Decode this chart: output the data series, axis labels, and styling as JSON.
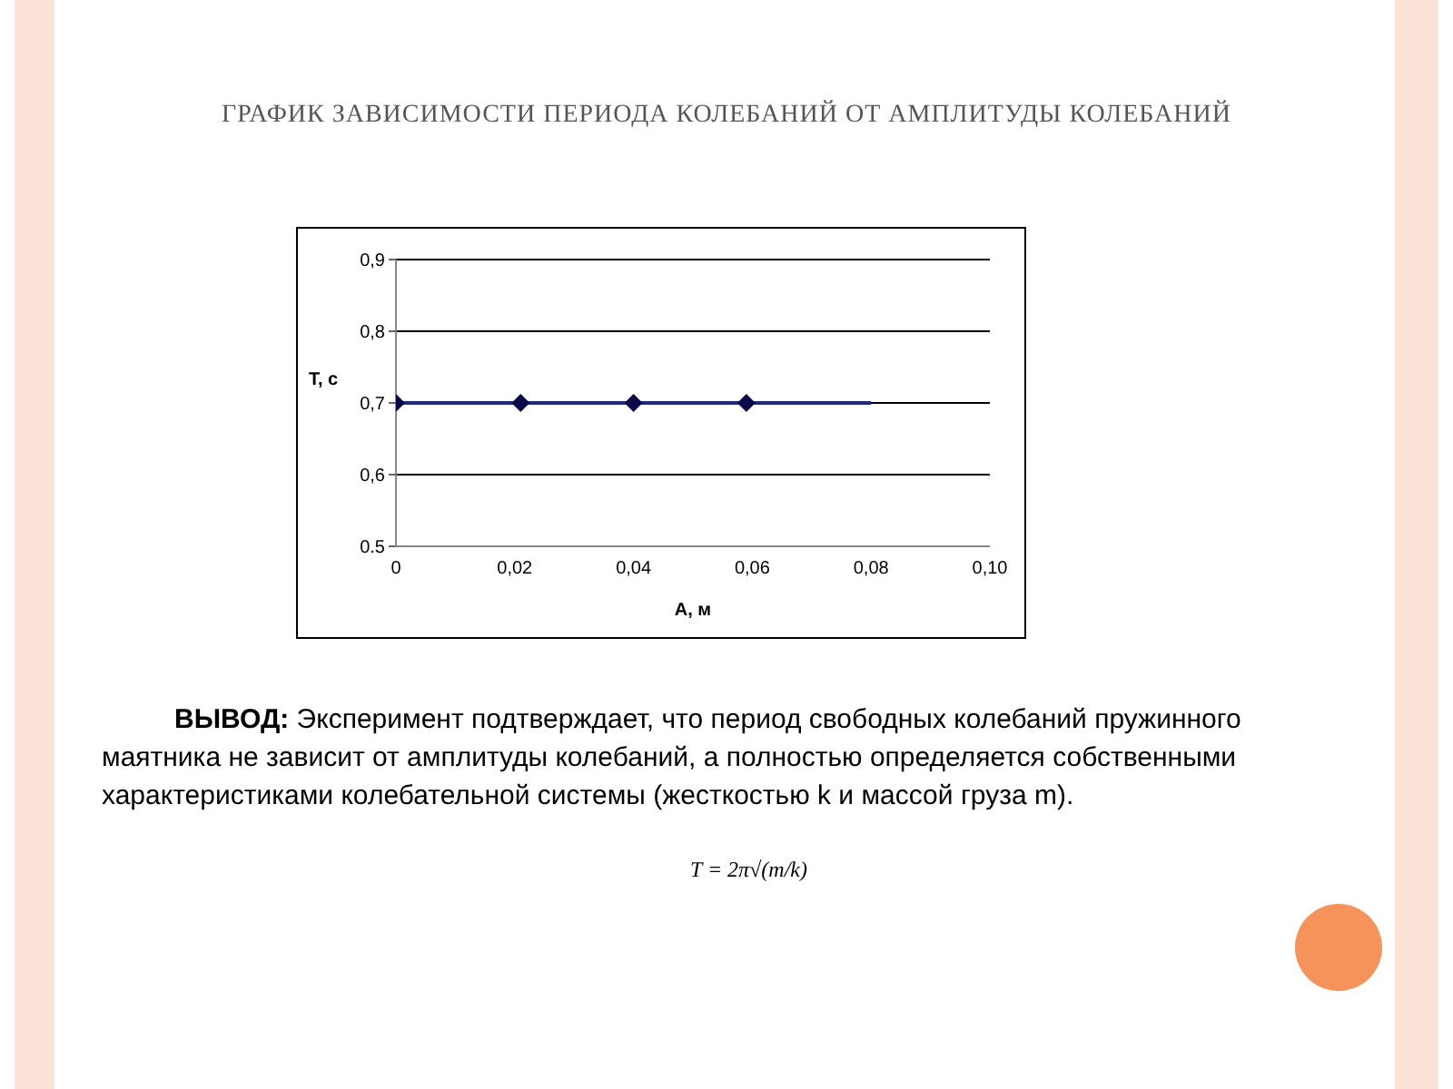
{
  "chart_data": {
    "type": "line",
    "title": "ГРАФИК ЗАВИСИМОСТИ ПЕРИОДА КОЛЕБАНИЙ ОТ АМПЛИТУДЫ КОЛЕБАНИЙ",
    "xlabel": "A, м",
    "ylabel": "T, c",
    "series": [
      {
        "color": "#1f2a7a",
        "x": [
          0,
          0.08
        ],
        "values": [
          0.7,
          0.7
        ],
        "marker": "none"
      },
      {
        "type": "scatter",
        "color": "#0a0a4a",
        "x": [
          0,
          0.021,
          0.04,
          0.059
        ],
        "values": [
          0.7,
          0.7,
          0.7,
          0.7
        ],
        "marker": "diamond"
      }
    ],
    "xlim": [
      0,
      0.1
    ],
    "xticks": [
      {
        "value": 0,
        "label": "0"
      },
      {
        "value": 0.02,
        "label": "0,02"
      },
      {
        "value": 0.04,
        "label": "0,04"
      },
      {
        "value": 0.06,
        "label": "0,06"
      },
      {
        "value": 0.08,
        "label": "0,08"
      },
      {
        "value": 0.1,
        "label": "0,10"
      }
    ],
    "ylim": [
      0.5,
      0.9
    ],
    "yticks": [
      {
        "value": 0.5,
        "label": "0.5"
      },
      {
        "value": 0.6,
        "label": "0,6"
      },
      {
        "value": 0.7,
        "label": "0,7"
      },
      {
        "value": 0.8,
        "label": "0,8"
      },
      {
        "value": 0.9,
        "label": "0,9"
      }
    ],
    "grid": "y",
    "annotations": [
      "ВЫВОД: Эксперимент подтверждает, что период свободных колебаний пружинного маятника не зависит от амплитуды колебаний, а полностью определяется собственными характеристиками колебательной системы (жесткостью k и массой груза m).",
      "T = 2π√(m/k)"
    ]
  }
}
